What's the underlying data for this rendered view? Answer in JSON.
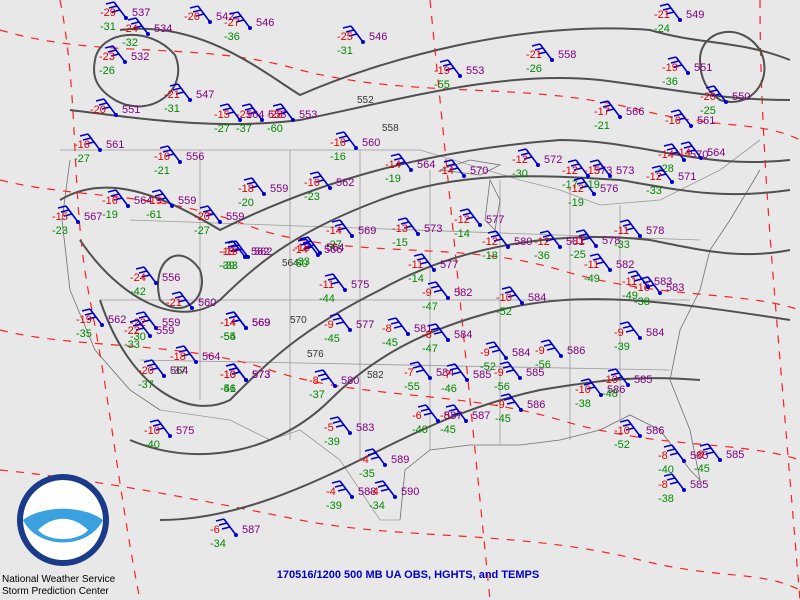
{
  "colors": {
    "background": "#e8e8e8",
    "temperature": "#e00000",
    "dewpoint": "#008800",
    "height": "#800080",
    "contour": "#505050",
    "wind": "#0000cc",
    "isotherm": "#ff2020",
    "caption": "#0000c8"
  },
  "logo_text": "NOAA",
  "agency": {
    "line1": "National Weather Service",
    "line2": "Storm Prediction Center"
  },
  "caption": "170516/1200 500 MB UA OBS, HGHTS, and TEMPS",
  "contour_labels": [
    "552",
    "558",
    "564",
    "570",
    "576",
    "582"
  ],
  "stations": [
    {
      "t": "-29",
      "d": "-31",
      "h": "537"
    },
    {
      "t": "-24",
      "d": "-32",
      "h": "534"
    },
    {
      "t": "-23",
      "d": "-26",
      "h": "532"
    },
    {
      "t": "-21",
      "d": "-31",
      "h": "547"
    },
    {
      "t": "-20",
      "d": "",
      "h": "551"
    },
    {
      "t": "-16",
      "d": "-27",
      "h": "561"
    },
    {
      "t": "-26",
      "d": "",
      "h": "542"
    },
    {
      "t": "-27",
      "d": "-36",
      "h": "546"
    },
    {
      "t": "-21",
      "d": "-37",
      "h": "553"
    },
    {
      "t": "-28",
      "d": "-60",
      "h": "553"
    },
    {
      "t": "-25",
      "d": "-31",
      "h": "546"
    },
    {
      "t": "-16",
      "d": "-21",
      "h": "556"
    },
    {
      "t": "-16",
      "d": "-19",
      "h": "564"
    },
    {
      "t": "-15",
      "d": "-23",
      "h": "567"
    },
    {
      "t": "-19",
      "d": "-61",
      "h": "559"
    },
    {
      "t": "-18",
      "d": "-20",
      "h": "559"
    },
    {
      "t": "-20",
      "d": "-27",
      "h": "559"
    },
    {
      "t": "-16",
      "d": "-23",
      "h": "562"
    },
    {
      "t": "-16",
      "d": "-16",
      "h": "560"
    },
    {
      "t": "-14",
      "d": "-19",
      "h": "564"
    },
    {
      "t": "-14",
      "d": "",
      "h": "570"
    },
    {
      "t": "-19",
      "d": "-55",
      "h": "553"
    },
    {
      "t": "-21",
      "d": "-26",
      "h": "558"
    },
    {
      "t": "-15",
      "d": "-27",
      "h": "564"
    },
    {
      "t": "-12",
      "d": "-30",
      "h": "572"
    },
    {
      "t": "-12",
      "d": "-17",
      "h": "573"
    },
    {
      "t": "-12",
      "d": "-14",
      "h": "577"
    },
    {
      "t": "-12",
      "d": "-19",
      "h": "576"
    },
    {
      "t": "-15",
      "d": "-19",
      "h": "573"
    },
    {
      "t": "-17",
      "d": "-21",
      "h": "566"
    },
    {
      "t": "-14",
      "d": "-28",
      "h": "570"
    },
    {
      "t": "-21",
      "d": "-24",
      "h": "549"
    },
    {
      "t": "-19",
      "d": "-36",
      "h": "551"
    },
    {
      "t": "-20",
      "d": "-25",
      "h": "550"
    },
    {
      "t": "-16",
      "d": "",
      "h": "561"
    },
    {
      "t": "-14",
      "d": "",
      "h": "564"
    },
    {
      "t": "-12",
      "d": "-33",
      "h": "571"
    },
    {
      "t": "-24",
      "d": "-42",
      "h": "556"
    },
    {
      "t": "-21",
      "d": "",
      "h": "560"
    },
    {
      "t": "-22",
      "d": "-30",
      "h": "559"
    },
    {
      "t": "-19",
      "d": "-33",
      "h": "562"
    },
    {
      "t": "-18",
      "d": "-33",
      "h": "564"
    },
    {
      "t": "-14",
      "d": "-60",
      "h": "566"
    },
    {
      "t": "-14",
      "d": "-27",
      "h": "569"
    },
    {
      "t": "-19",
      "d": "-39",
      "h": "562"
    },
    {
      "t": "-13",
      "d": "-15",
      "h": "573"
    },
    {
      "t": "-11",
      "d": "-14",
      "h": "577"
    },
    {
      "t": "-12",
      "d": "-18",
      "h": "580"
    },
    {
      "t": "-12",
      "d": "-36",
      "h": "581"
    },
    {
      "t": "-11",
      "d": "-25",
      "h": "578"
    },
    {
      "t": "-11",
      "d": "-49",
      "h": "582"
    },
    {
      "t": "-11",
      "d": "-33",
      "h": "578"
    },
    {
      "t": "-16",
      "d": "-38",
      "h": "583"
    },
    {
      "t": "-14",
      "d": "-55",
      "h": "569"
    },
    {
      "t": "-11",
      "d": "-44",
      "h": "575"
    },
    {
      "t": "-9",
      "d": "-45",
      "h": "577"
    },
    {
      "t": "-8",
      "d": "-45",
      "h": "581"
    },
    {
      "t": "-9",
      "d": "-47",
      "h": "582"
    },
    {
      "t": "-10",
      "d": "-52",
      "h": "584"
    },
    {
      "t": "-11",
      "d": "-49",
      "h": "583"
    },
    {
      "t": "-9",
      "d": "-39",
      "h": "584"
    },
    {
      "t": "-8",
      "d": "-47",
      "h": "584"
    },
    {
      "t": "-7",
      "d": "-55",
      "h": "584"
    },
    {
      "t": "-8",
      "d": "-37",
      "h": "580"
    },
    {
      "t": "-10",
      "d": "-46",
      "h": "573"
    },
    {
      "t": "-14",
      "d": "-54",
      "h": "569"
    },
    {
      "t": "-9",
      "d": "-56",
      "h": "586"
    },
    {
      "t": "-9",
      "d": "-56",
      "h": "585"
    },
    {
      "t": "-9",
      "d": "-52",
      "h": "584"
    },
    {
      "t": "-10",
      "d": "-38",
      "h": "586"
    },
    {
      "t": "-10",
      "d": "-48",
      "h": "585"
    },
    {
      "t": "-7",
      "d": "-46",
      "h": "585"
    },
    {
      "t": "-9",
      "d": "-45",
      "h": "586"
    },
    {
      "t": "-8",
      "d": "-45",
      "h": "587"
    },
    {
      "t": "-6",
      "d": "-40",
      "h": "587"
    },
    {
      "t": "-5",
      "d": "-39",
      "h": "583"
    },
    {
      "t": "-4",
      "d": "-35",
      "h": "589"
    },
    {
      "t": "-4",
      "d": "-39",
      "h": "588"
    },
    {
      "t": "-4",
      "d": "-34",
      "h": "590"
    },
    {
      "t": "-10",
      "d": "-52",
      "h": "586"
    },
    {
      "t": "-8",
      "d": "-40",
      "h": "585"
    },
    {
      "t": "-8",
      "d": "-38",
      "h": "585"
    },
    {
      "t": "-8",
      "d": "-45",
      "h": "585"
    },
    {
      "t": "-10",
      "d": "-40",
      "h": "575"
    },
    {
      "t": "-18",
      "d": "-37",
      "h": "564"
    },
    {
      "t": "-22",
      "d": "-33",
      "h": "559"
    },
    {
      "t": "-19",
      "d": "-35",
      "h": "562"
    },
    {
      "t": "-6",
      "d": "-34",
      "h": "587"
    },
    {
      "t": "-10",
      "d": "-51",
      "h": "573"
    },
    {
      "t": "-20",
      "d": "-37",
      "h": "564"
    }
  ]
}
